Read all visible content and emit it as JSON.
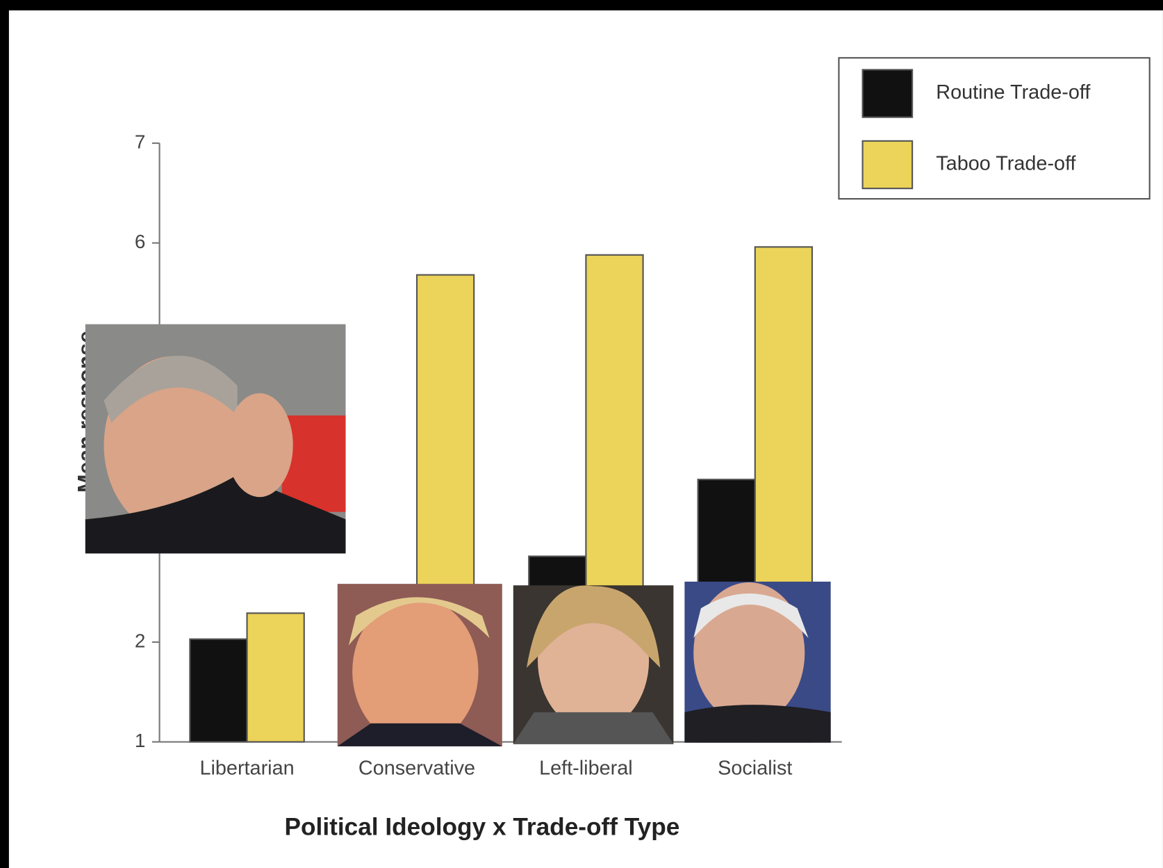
{
  "chart_data": {
    "type": "bar",
    "x_label": "Political Ideology x Trade-off Type",
    "y_label": "Mean response",
    "categories": [
      "Libertarian",
      "Conservative",
      "Left-liberal",
      "Socialist"
    ],
    "series": [
      {
        "name": "Routine Trade-off",
        "color": "#111111",
        "values": [
          2.03,
          null,
          2.86,
          3.63
        ]
      },
      {
        "name": "Taboo Trade-off",
        "color": "#ecd35a",
        "values": [
          2.29,
          5.68,
          5.88,
          5.96
        ]
      }
    ],
    "ylim": [
      1,
      7
    ],
    "yticks": [
      1,
      2,
      6,
      7
    ],
    "grid": false,
    "legend": "top-right"
  }
}
